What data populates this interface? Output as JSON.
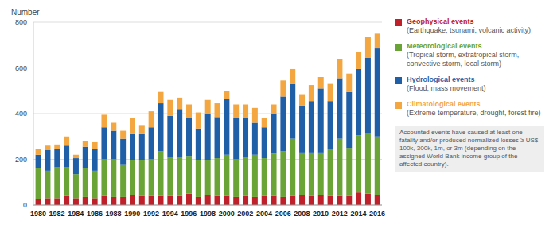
{
  "chart_data": {
    "type": "bar",
    "stacked": true,
    "grid": true,
    "legend": "right",
    "tick_labels": true,
    "y_label": "Number",
    "categories": [
      "1980",
      null,
      "1982",
      null,
      "1984",
      null,
      "1986",
      null,
      "1988",
      null,
      "1990",
      null,
      "1992",
      null,
      "1994",
      null,
      "1996",
      null,
      "1998",
      null,
      "2000",
      null,
      "2002",
      null,
      "2004",
      null,
      "2006",
      null,
      "2008",
      null,
      "2010",
      null,
      "2012",
      null,
      "2014",
      null,
      "2016"
    ],
    "ylim": [
      0,
      800
    ],
    "yticks": [
      0,
      200,
      400,
      600,
      800
    ],
    "series": [
      {
        "name": "Geophysical events",
        "description": "(Earthquake, tsunami, volcanic activity)",
        "color": "#c0202a",
        "values": [
          25,
          30,
          30,
          40,
          30,
          35,
          30,
          40,
          35,
          35,
          45,
          40,
          40,
          40,
          40,
          40,
          50,
          35,
          45,
          40,
          40,
          35,
          40,
          35,
          40,
          40,
          35,
          40,
          45,
          40,
          45,
          40,
          40,
          40,
          55,
          50,
          45
        ]
      },
      {
        "name": "Meteorological events",
        "description": "(Tropical storm, extratropical storm, convective storm, local storm)",
        "color": "#6aa336",
        "values": [
          135,
          120,
          135,
          125,
          105,
          125,
          120,
          160,
          165,
          140,
          150,
          155,
          160,
          195,
          170,
          170,
          165,
          160,
          150,
          165,
          180,
          165,
          170,
          185,
          165,
          185,
          200,
          250,
          185,
          190,
          185,
          205,
          250,
          210,
          250,
          265,
          255
        ]
      },
      {
        "name": "Hydrological events",
        "description": "(Flood, mass movement)",
        "color": "#1f5fa8",
        "values": [
          60,
          90,
          80,
          95,
          70,
          95,
          95,
          140,
          125,
          115,
          115,
          115,
          140,
          210,
          180,
          210,
          165,
          140,
          205,
          180,
          245,
          180,
          170,
          140,
          135,
          175,
          240,
          240,
          205,
          225,
          280,
          210,
          265,
          245,
          290,
          330,
          385
        ]
      },
      {
        "name": "Climatological events",
        "description": "(Extreme temperature, drought, forest fire)",
        "color": "#f4a640",
        "values": [
          25,
          20,
          20,
          40,
          15,
          25,
          30,
          55,
          35,
          35,
          70,
          40,
          70,
          50,
          70,
          50,
          60,
          70,
          60,
          60,
          35,
          60,
          60,
          65,
          40,
          40,
          70,
          65,
          50,
          70,
          50,
          75,
          85,
          80,
          75,
          90,
          65
        ]
      }
    ],
    "annotation": "Accounted events have caused at least one fatality and/or produced normalized losses ≥ US$ 100k, 300k, 1m, or 3m (depending on the assigned World Bank income group of the affected country)."
  }
}
